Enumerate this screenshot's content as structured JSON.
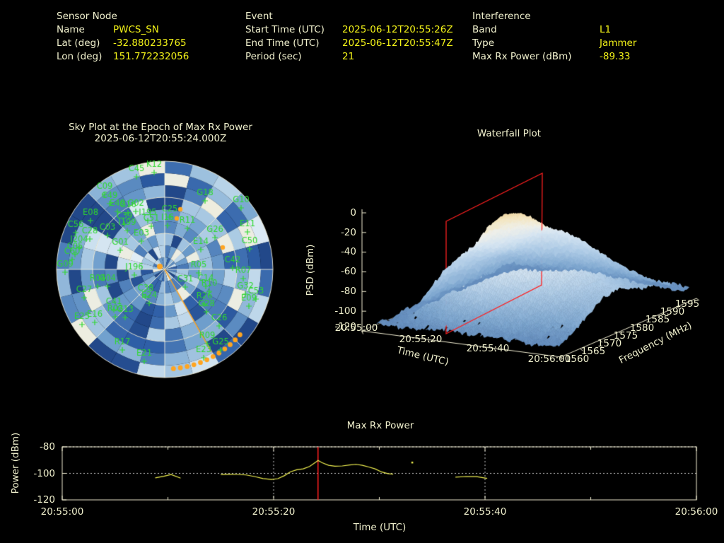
{
  "colors": {
    "background": "#000000",
    "label_text": "#f0f0cd",
    "value_text": "#f2f218",
    "satellite_green": "#2fd82f",
    "jammer_orange": "#ffa521",
    "marker_red": "#ff2020",
    "grid_cream": "#f2eed2",
    "curve_yellow": "#f0f050"
  },
  "header": {
    "sensor": {
      "title": "Sensor Node",
      "rows": [
        {
          "label": "Name",
          "value": "PWCS_SN"
        },
        {
          "label": "Lat (deg)",
          "value": "-32.880233765"
        },
        {
          "label": "Lon (deg)",
          "value": "151.772232056"
        }
      ]
    },
    "event": {
      "title": "Event",
      "rows": [
        {
          "label": "Start Time (UTC)",
          "value": "2025-06-12T20:55:26Z"
        },
        {
          "label": "End Time (UTC)",
          "value": "2025-06-12T20:55:47Z"
        },
        {
          "label": "Period (sec)",
          "value": "21"
        }
      ]
    },
    "interference": {
      "title": "Interference",
      "rows": [
        {
          "label": "Band",
          "value": "L1"
        },
        {
          "label": "Type",
          "value": "Jammer"
        },
        {
          "label": "Max Rx Power (dBm)",
          "value": "-89.33"
        }
      ]
    }
  },
  "plots": {
    "sky": {
      "title_line1": "Sky Plot at the Epoch of Max Rx Power",
      "title_line2": "2025-06-12T20:55:24.000Z"
    },
    "waterfall": {
      "title": "Waterfall Plot",
      "z_label": "PSD (dBm)",
      "x_label": "Time (UTC)",
      "y_label": "Frequency (MHz)"
    },
    "power": {
      "title": "Max Rx Power",
      "x_label": "Time (UTC)",
      "y_label": "Power (dBm)"
    }
  },
  "chart_data": [
    {
      "id": "sky_plot",
      "type": "heatmap",
      "projection": "polar",
      "title": "Sky Plot at the Epoch of Max Rx Power",
      "subtitle": "2025-06-12T20:55:24.000Z",
      "elevation_rings_deg": [
        0,
        30,
        60
      ],
      "satellites": [
        [
          "C45",
          123,
          19
        ],
        [
          "K12",
          148,
          13
        ],
        [
          "C09",
          78,
          44
        ],
        [
          "C49",
          85,
          57
        ],
        [
          "E49",
          96,
          68
        ],
        [
          "G16",
          111,
          70
        ],
        [
          "G02",
          122,
          68
        ],
        [
          "E08",
          58,
          81
        ],
        [
          "C39",
          106,
          86
        ],
        [
          "I195",
          139,
          81
        ],
        [
          "C51",
          144,
          89
        ],
        [
          "C25",
          170,
          76
        ],
        [
          "I16",
          167,
          88
        ],
        [
          "C56",
          37,
          98
        ],
        [
          "C28",
          57,
          107
        ],
        [
          "C03",
          82,
          102
        ],
        [
          "I199",
          110,
          95
        ],
        [
          "E03",
          130,
          110
        ],
        [
          "G01",
          100,
          123
        ],
        [
          "I204",
          42,
          119
        ],
        [
          "C05",
          36,
          129
        ],
        [
          "C60",
          32,
          136
        ],
        [
          "G09",
          22,
          154
        ],
        [
          "J196",
          120,
          158
        ],
        [
          "G18",
          220,
          53
        ],
        [
          "G10",
          271,
          63
        ],
        [
          "R11",
          195,
          92
        ],
        [
          "G26",
          234,
          105
        ],
        [
          "E11",
          280,
          97
        ],
        [
          "C50",
          283,
          121
        ],
        [
          "E14",
          214,
          122
        ],
        [
          "C42",
          259,
          148
        ],
        [
          "R07",
          274,
          163
        ],
        [
          "R05",
          211,
          155
        ],
        [
          "C31",
          192,
          175
        ],
        [
          "C14",
          221,
          174
        ],
        [
          "G32",
          277,
          185
        ],
        [
          "C53",
          292,
          192
        ],
        [
          "E09",
          282,
          202
        ],
        [
          "R10",
          226,
          181
        ],
        [
          "R26",
          219,
          199
        ],
        [
          "G28",
          222,
          210
        ],
        [
          "C26",
          240,
          230
        ],
        [
          "R09",
          223,
          255
        ],
        [
          "G25",
          242,
          264
        ],
        [
          "E23",
          218,
          275
        ],
        [
          "R04",
          68,
          174
        ],
        [
          "G04",
          82,
          174
        ],
        [
          "C27",
          49,
          190
        ],
        [
          "C41",
          91,
          207
        ],
        [
          "C38",
          136,
          188
        ],
        [
          "E24",
          141,
          198
        ],
        [
          "R03",
          93,
          217
        ],
        [
          "G13",
          107,
          218
        ],
        [
          "E25",
          46,
          228
        ],
        [
          "E16",
          64,
          225
        ],
        [
          "R17",
          103,
          264
        ],
        [
          "E21",
          134,
          280
        ]
      ],
      "jammer": {
        "center_dot": [
          156,
          157
        ],
        "line": [
          163,
          161,
          229,
          278
        ],
        "mid_dots": [
          [
            185,
            76
          ],
          [
            180,
            89
          ],
          [
            245,
            130
          ]
        ],
        "rim_arc": {
          "cx": 163,
          "cy": 161,
          "r": 141,
          "az_start_deg": 131,
          "az_end_deg": 175,
          "n_dots": 12
        }
      }
    },
    {
      "id": "waterfall",
      "type": "heatmap",
      "representation": "3d-surface",
      "title": "Waterfall Plot",
      "xlabel": "Time (UTC)",
      "ylabel": "Frequency (MHz)",
      "zlabel": "PSD (dBm)",
      "x_ticks": [
        "20:55:00",
        "20:55:20",
        "20:55:40",
        "20:56:00"
      ],
      "y_ticks": [
        "1560",
        "1565",
        "1570",
        "1575",
        "1580",
        "1585",
        "1590",
        "1595"
      ],
      "z_ticks": [
        "0",
        "-20",
        "-40",
        "-60",
        "-80",
        "-100",
        "-120"
      ],
      "zlim": [
        -120,
        0
      ],
      "freq_range_mhz": [
        1560,
        1595
      ],
      "noise_floor_dbm": -112,
      "peak": {
        "time_utc": "20:55:24",
        "psd_dbm": -20,
        "freq_mhz": 1576
      },
      "marker_plane_time_utc": "20:55:24"
    },
    {
      "id": "max_rx_power",
      "type": "line",
      "title": "Max Rx Power",
      "xlabel": "Time (UTC)",
      "ylabel": "Power (dBm)",
      "x_ticks": [
        "20:55:00",
        "20:55:20",
        "20:55:40",
        "20:56:00"
      ],
      "x_tick_seconds": [
        0,
        20,
        40,
        60
      ],
      "y_ticks": [
        -80,
        -100,
        -120
      ],
      "ylim": [
        -120,
        -80
      ],
      "grid": "dotted",
      "red_marker_line_t_sec": 24.2,
      "series": [
        {
          "name": "max_rx_power_dbm",
          "segments": [
            [
              [
                8.8,
                -103.4
              ],
              [
                9.6,
                -102.2
              ],
              [
                10.3,
                -100.9
              ],
              [
                11.2,
                -103.6
              ]
            ],
            [
              [
                15.0,
                -100.9
              ],
              [
                15.8,
                -100.7
              ],
              [
                16.6,
                -100.8
              ],
              [
                17.4,
                -101.2
              ],
              [
                18.2,
                -102.4
              ],
              [
                19.0,
                -103.9
              ],
              [
                19.8,
                -104.6
              ],
              [
                20.4,
                -104.0
              ],
              [
                21.0,
                -101.8
              ],
              [
                21.6,
                -98.8
              ],
              [
                22.2,
                -97.3
              ],
              [
                22.8,
                -96.6
              ],
              [
                23.4,
                -94.8
              ],
              [
                24.0,
                -91.5
              ],
              [
                24.2,
                -90.3
              ],
              [
                24.6,
                -92.0
              ],
              [
                25.2,
                -93.9
              ],
              [
                25.8,
                -94.6
              ],
              [
                26.5,
                -94.4
              ],
              [
                27.2,
                -93.7
              ],
              [
                27.8,
                -93.2
              ],
              [
                28.4,
                -93.9
              ],
              [
                29.0,
                -95.2
              ],
              [
                29.6,
                -96.6
              ],
              [
                30.2,
                -98.9
              ],
              [
                30.8,
                -100.2
              ],
              [
                31.3,
                -100.6
              ]
            ],
            [
              [
                37.2,
                -102.9
              ],
              [
                38.2,
                -102.4
              ],
              [
                39.2,
                -102.5
              ],
              [
                40.2,
                -103.8
              ]
            ]
          ],
          "isolated_points": [
            [
              33.1,
              -91.7
            ]
          ]
        }
      ]
    }
  ]
}
